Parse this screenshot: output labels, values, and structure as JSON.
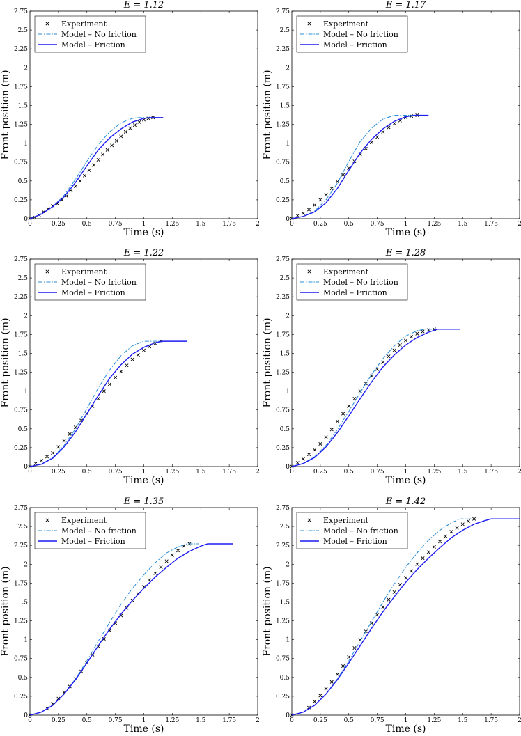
{
  "legend_labels": {
    "experiment": "Experiment",
    "no_friction": "Model – No friction",
    "friction": "Model – Friction"
  },
  "colors": {
    "experiment": "#000000",
    "no_friction": "#2b8fd6",
    "friction": "#1c1cf0"
  },
  "chart_data": [
    {
      "type": "line",
      "title": "E = 1.12",
      "xlabel": "Time (s)",
      "ylabel": "Front position (m)",
      "xlim": [
        0,
        2
      ],
      "ylim": [
        0,
        2.75
      ],
      "xticks": [
        "0",
        "0.25",
        "0.5",
        "0.75",
        "1",
        "1.25",
        "1.5",
        "1.75",
        "2"
      ],
      "yticks": [
        "0",
        "0.25",
        "0.5",
        "0.75",
        "1",
        "1.25",
        "1.5",
        "1.75",
        "2",
        "2.25",
        "2.5",
        "2.75"
      ],
      "legend": "top-left",
      "series": [
        {
          "name": "Experiment",
          "style": "markers",
          "x": [
            0,
            0.04,
            0.08,
            0.12,
            0.16,
            0.2,
            0.24,
            0.28,
            0.32,
            0.36,
            0.4,
            0.44,
            0.48,
            0.52,
            0.56,
            0.6,
            0.64,
            0.68,
            0.72,
            0.76,
            0.8,
            0.84,
            0.88,
            0.92,
            0.96,
            1.0,
            1.04,
            1.08
          ],
          "y": [
            0,
            0.02,
            0.05,
            0.09,
            0.13,
            0.17,
            0.2,
            0.25,
            0.3,
            0.37,
            0.43,
            0.5,
            0.57,
            0.64,
            0.71,
            0.78,
            0.85,
            0.91,
            0.97,
            1.03,
            1.09,
            1.15,
            1.2,
            1.24,
            1.28,
            1.31,
            1.33,
            1.34
          ]
        },
        {
          "name": "Model – No friction",
          "style": "dashdot",
          "x": [
            0,
            0.1,
            0.2,
            0.3,
            0.4,
            0.5,
            0.6,
            0.7,
            0.8,
            0.9,
            0.96,
            1.15
          ],
          "y": [
            0,
            0.06,
            0.16,
            0.31,
            0.52,
            0.76,
            0.98,
            1.15,
            1.27,
            1.33,
            1.34,
            1.34
          ]
        },
        {
          "name": "Model – Friction",
          "style": "solid",
          "x": [
            0,
            0.1,
            0.2,
            0.3,
            0.4,
            0.5,
            0.6,
            0.7,
            0.8,
            0.9,
            1.0,
            1.06,
            1.17
          ],
          "y": [
            0,
            0.06,
            0.16,
            0.29,
            0.48,
            0.7,
            0.91,
            1.07,
            1.19,
            1.28,
            1.33,
            1.34,
            1.34
          ]
        }
      ]
    },
    {
      "type": "line",
      "title": "E = 1.17",
      "xlabel": "Time (s)",
      "ylabel": "Front position (m)",
      "xlim": [
        0,
        2
      ],
      "ylim": [
        0,
        2.75
      ],
      "xticks": [
        "0",
        "0.25",
        "0.5",
        "0.75",
        "1",
        "1.25",
        "1.5",
        "1.75",
        "2"
      ],
      "yticks": [
        "0",
        "0.25",
        "0.5",
        "0.75",
        "1",
        "1.25",
        "1.5",
        "1.75",
        "2",
        "2.25",
        "2.5",
        "2.75"
      ],
      "legend": "top-left",
      "series": [
        {
          "name": "Experiment",
          "style": "markers",
          "x": [
            0,
            0.05,
            0.1,
            0.15,
            0.2,
            0.25,
            0.3,
            0.35,
            0.4,
            0.45,
            0.5,
            0.55,
            0.6,
            0.65,
            0.7,
            0.75,
            0.8,
            0.85,
            0.9,
            0.95,
            1.0,
            1.05,
            1.1
          ],
          "y": [
            0,
            0.04,
            0.07,
            0.12,
            0.18,
            0.25,
            0.32,
            0.4,
            0.49,
            0.58,
            0.67,
            0.76,
            0.85,
            0.93,
            1.01,
            1.08,
            1.15,
            1.21,
            1.26,
            1.3,
            1.34,
            1.36,
            1.37
          ]
        },
        {
          "name": "Model – No friction",
          "style": "dashdot",
          "x": [
            0,
            0.1,
            0.2,
            0.3,
            0.4,
            0.5,
            0.6,
            0.7,
            0.8,
            0.9,
            0.93,
            1.2
          ],
          "y": [
            0,
            0.03,
            0.1,
            0.25,
            0.47,
            0.76,
            1.02,
            1.2,
            1.32,
            1.37,
            1.37,
            1.37
          ]
        },
        {
          "name": "Model – Friction",
          "style": "solid",
          "x": [
            0,
            0.1,
            0.2,
            0.3,
            0.4,
            0.5,
            0.6,
            0.7,
            0.8,
            0.9,
            1.0,
            1.08,
            1.2
          ],
          "y": [
            0,
            0.03,
            0.09,
            0.21,
            0.4,
            0.64,
            0.87,
            1.05,
            1.19,
            1.29,
            1.35,
            1.37,
            1.37
          ]
        }
      ]
    },
    {
      "type": "line",
      "title": "E = 1.22",
      "xlabel": "Time (s)",
      "ylabel": "Front position (m)",
      "xlim": [
        0,
        2
      ],
      "ylim": [
        0,
        2.75
      ],
      "xticks": [
        "0",
        "0.25",
        "0.5",
        "0.75",
        "1",
        "1.25",
        "1.5",
        "1.75",
        "2"
      ],
      "yticks": [
        "0",
        "0.25",
        "0.5",
        "0.75",
        "1",
        "1.25",
        "1.5",
        "1.75",
        "2",
        "2.25",
        "2.5",
        "2.75"
      ],
      "legend": "top-left",
      "series": [
        {
          "name": "Experiment",
          "style": "markers",
          "x": [
            0,
            0.05,
            0.1,
            0.15,
            0.2,
            0.25,
            0.3,
            0.35,
            0.4,
            0.45,
            0.5,
            0.55,
            0.6,
            0.65,
            0.7,
            0.75,
            0.8,
            0.85,
            0.9,
            0.95,
            1.0,
            1.05,
            1.1,
            1.15
          ],
          "y": [
            0,
            0.04,
            0.08,
            0.13,
            0.18,
            0.26,
            0.34,
            0.43,
            0.52,
            0.61,
            0.7,
            0.8,
            0.9,
            1.0,
            1.09,
            1.18,
            1.26,
            1.34,
            1.42,
            1.48,
            1.54,
            1.59,
            1.63,
            1.66
          ]
        },
        {
          "name": "Model – No friction",
          "style": "dashdot",
          "x": [
            0,
            0.1,
            0.2,
            0.3,
            0.4,
            0.5,
            0.6,
            0.7,
            0.8,
            0.9,
            1.0,
            1.03,
            1.15
          ],
          "y": [
            0,
            0.03,
            0.12,
            0.28,
            0.5,
            0.77,
            1.04,
            1.28,
            1.47,
            1.6,
            1.66,
            1.66,
            1.66
          ]
        },
        {
          "name": "Model – Friction",
          "style": "solid",
          "x": [
            0,
            0.1,
            0.2,
            0.3,
            0.4,
            0.5,
            0.6,
            0.7,
            0.8,
            0.9,
            1.0,
            1.1,
            1.16,
            1.38
          ],
          "y": [
            0,
            0.03,
            0.11,
            0.26,
            0.46,
            0.7,
            0.94,
            1.17,
            1.35,
            1.49,
            1.58,
            1.64,
            1.66,
            1.66
          ]
        }
      ]
    },
    {
      "type": "line",
      "title": "E = 1.28",
      "xlabel": "Time (s)",
      "ylabel": "Front position (m)",
      "xlim": [
        0,
        2
      ],
      "ylim": [
        0,
        2.75
      ],
      "xticks": [
        "0",
        "0.25",
        "0.5",
        "0.75",
        "1",
        "1.25",
        "1.5",
        "1.75",
        "2"
      ],
      "yticks": [
        "0",
        "0.25",
        "0.5",
        "0.75",
        "1",
        "1.25",
        "1.5",
        "1.75",
        "2",
        "2.25",
        "2.5",
        "2.75"
      ],
      "legend": "top-left",
      "series": [
        {
          "name": "Experiment",
          "style": "markers",
          "x": [
            0,
            0.05,
            0.1,
            0.15,
            0.2,
            0.25,
            0.3,
            0.35,
            0.4,
            0.45,
            0.5,
            0.55,
            0.6,
            0.65,
            0.7,
            0.75,
            0.8,
            0.85,
            0.9,
            0.95,
            1.0,
            1.05,
            1.1,
            1.15,
            1.2,
            1.25
          ],
          "y": [
            0,
            0.05,
            0.1,
            0.16,
            0.22,
            0.3,
            0.39,
            0.49,
            0.6,
            0.7,
            0.8,
            0.9,
            1.0,
            1.1,
            1.2,
            1.29,
            1.38,
            1.46,
            1.54,
            1.61,
            1.67,
            1.72,
            1.76,
            1.79,
            1.81,
            1.82
          ]
        },
        {
          "name": "Model – No friction",
          "style": "dashdot",
          "x": [
            0,
            0.1,
            0.2,
            0.3,
            0.4,
            0.5,
            0.6,
            0.7,
            0.8,
            0.9,
            1.0,
            1.1,
            1.17,
            1.25
          ],
          "y": [
            0,
            0.04,
            0.13,
            0.28,
            0.49,
            0.73,
            0.98,
            1.22,
            1.43,
            1.6,
            1.73,
            1.8,
            1.82,
            1.82
          ]
        },
        {
          "name": "Model – Friction",
          "style": "solid",
          "x": [
            0,
            0.1,
            0.2,
            0.3,
            0.4,
            0.5,
            0.6,
            0.7,
            0.8,
            0.9,
            1.0,
            1.1,
            1.2,
            1.28,
            1.48
          ],
          "y": [
            0,
            0.04,
            0.12,
            0.26,
            0.45,
            0.67,
            0.9,
            1.12,
            1.32,
            1.48,
            1.61,
            1.71,
            1.78,
            1.82,
            1.82
          ]
        }
      ]
    },
    {
      "type": "line",
      "title": "E = 1.35",
      "xlabel": "Time (s)",
      "ylabel": "Front position (m)",
      "xlim": [
        0,
        2
      ],
      "ylim": [
        0,
        2.75
      ],
      "xticks": [
        "0",
        "0.25",
        "0.5",
        "0.75",
        "1",
        "1.25",
        "1.5",
        "1.75",
        "2"
      ],
      "yticks": [
        "0",
        "0.25",
        "0.5",
        "0.75",
        "1",
        "1.25",
        "1.5",
        "1.75",
        "2",
        "2.25",
        "2.5",
        "2.75"
      ],
      "legend": "top-left",
      "series": [
        {
          "name": "Experiment",
          "style": "markers",
          "x": [
            0,
            0.15,
            0.2,
            0.25,
            0.3,
            0.35,
            0.4,
            0.45,
            0.5,
            0.55,
            0.6,
            0.65,
            0.7,
            0.75,
            0.8,
            0.85,
            0.9,
            0.95,
            1.0,
            1.05,
            1.1,
            1.15,
            1.2,
            1.25,
            1.3,
            1.35,
            1.4
          ],
          "y": [
            0,
            0.09,
            0.15,
            0.22,
            0.3,
            0.38,
            0.48,
            0.58,
            0.69,
            0.8,
            0.91,
            1.01,
            1.12,
            1.22,
            1.32,
            1.42,
            1.52,
            1.61,
            1.7,
            1.79,
            1.88,
            1.96,
            2.04,
            2.12,
            2.18,
            2.24,
            2.27
          ]
        },
        {
          "name": "Model – No friction",
          "style": "dashdot",
          "x": [
            0,
            0.1,
            0.2,
            0.3,
            0.4,
            0.5,
            0.6,
            0.7,
            0.8,
            0.9,
            1.0,
            1.1,
            1.2,
            1.3,
            1.38,
            1.48
          ],
          "y": [
            0,
            0.04,
            0.13,
            0.28,
            0.48,
            0.72,
            0.98,
            1.23,
            1.47,
            1.68,
            1.86,
            2.02,
            2.15,
            2.23,
            2.27,
            2.27
          ]
        },
        {
          "name": "Model – Friction",
          "style": "solid",
          "x": [
            0,
            0.1,
            0.2,
            0.3,
            0.4,
            0.5,
            0.6,
            0.7,
            0.8,
            0.9,
            1.0,
            1.1,
            1.2,
            1.3,
            1.4,
            1.5,
            1.56,
            1.78
          ],
          "y": [
            0,
            0.04,
            0.13,
            0.28,
            0.47,
            0.69,
            0.92,
            1.14,
            1.34,
            1.52,
            1.68,
            1.83,
            1.96,
            2.08,
            2.17,
            2.24,
            2.27,
            2.27
          ]
        }
      ]
    },
    {
      "type": "line",
      "title": "E = 1.42",
      "xlabel": "Time (s)",
      "ylabel": "Front position (m)",
      "xlim": [
        0,
        2
      ],
      "ylim": [
        0,
        2.75
      ],
      "xticks": [
        "0",
        "0.25",
        "0.5",
        "0.75",
        "1",
        "1.25",
        "1.5",
        "1.75",
        "2"
      ],
      "yticks": [
        "0",
        "0.25",
        "0.5",
        "0.75",
        "1",
        "1.25",
        "1.5",
        "1.75",
        "2",
        "2.25",
        "2.5",
        "2.75"
      ],
      "legend": "top-left",
      "series": [
        {
          "name": "Experiment",
          "style": "markers",
          "x": [
            0,
            0.15,
            0.2,
            0.25,
            0.3,
            0.35,
            0.4,
            0.45,
            0.5,
            0.55,
            0.6,
            0.65,
            0.7,
            0.75,
            0.8,
            0.85,
            0.9,
            0.95,
            1.0,
            1.05,
            1.1,
            1.15,
            1.2,
            1.25,
            1.3,
            1.35,
            1.4,
            1.45,
            1.5,
            1.55,
            1.6
          ],
          "y": [
            0,
            0.1,
            0.18,
            0.26,
            0.35,
            0.44,
            0.54,
            0.65,
            0.77,
            0.89,
            1.0,
            1.11,
            1.22,
            1.33,
            1.43,
            1.53,
            1.63,
            1.73,
            1.82,
            1.91,
            2.0,
            2.08,
            2.16,
            2.23,
            2.3,
            2.37,
            2.43,
            2.48,
            2.53,
            2.57,
            2.6
          ]
        },
        {
          "name": "Model – No friction",
          "style": "dashdot",
          "x": [
            0,
            0.1,
            0.2,
            0.3,
            0.4,
            0.5,
            0.6,
            0.7,
            0.8,
            0.9,
            1.0,
            1.1,
            1.2,
            1.3,
            1.4,
            1.48,
            1.6
          ],
          "y": [
            0,
            0.04,
            0.13,
            0.28,
            0.48,
            0.72,
            0.98,
            1.24,
            1.5,
            1.74,
            1.96,
            2.15,
            2.32,
            2.45,
            2.55,
            2.6,
            2.6
          ]
        },
        {
          "name": "Model – Friction",
          "style": "solid",
          "x": [
            0,
            0.1,
            0.2,
            0.3,
            0.4,
            0.5,
            0.6,
            0.7,
            0.8,
            0.9,
            1.0,
            1.1,
            1.2,
            1.3,
            1.4,
            1.5,
            1.6,
            1.7,
            1.75,
            2.0
          ],
          "y": [
            0,
            0.04,
            0.13,
            0.28,
            0.47,
            0.69,
            0.92,
            1.15,
            1.37,
            1.57,
            1.76,
            1.93,
            2.08,
            2.22,
            2.35,
            2.45,
            2.53,
            2.58,
            2.6,
            2.6
          ]
        }
      ]
    }
  ]
}
